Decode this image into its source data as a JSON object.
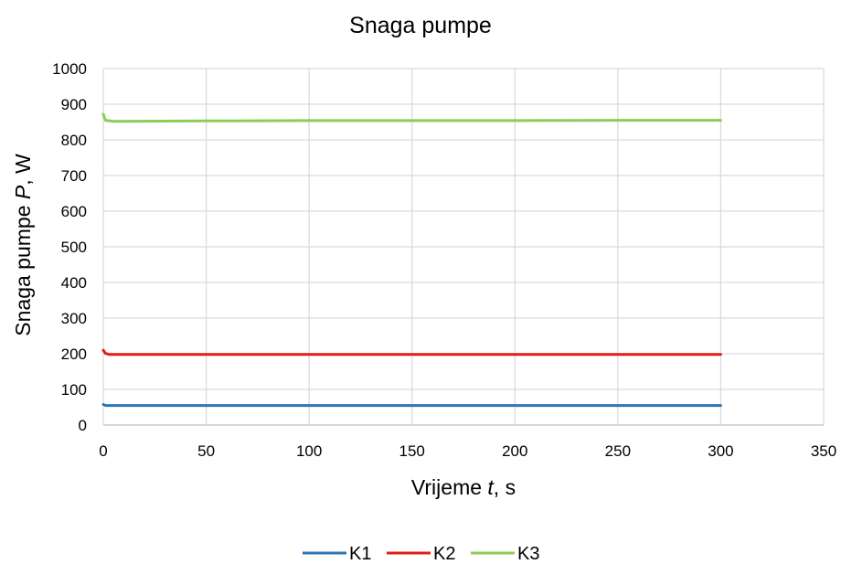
{
  "chart_data": {
    "type": "line",
    "title": "Snaga pumpe",
    "xlabel": {
      "pre": "Vrijeme ",
      "var": "t",
      "post": ", s"
    },
    "ylabel": {
      "pre": "Snaga pumpe ",
      "var": "P",
      "post": ", W"
    },
    "xlim": [
      0,
      350
    ],
    "ylim": [
      0,
      1000
    ],
    "xticks": [
      0,
      50,
      100,
      150,
      200,
      250,
      300,
      350
    ],
    "yticks": [
      0,
      100,
      200,
      300,
      400,
      500,
      600,
      700,
      800,
      900,
      1000
    ],
    "grid": true,
    "legend_position": "bottom",
    "series": [
      {
        "name": "K1",
        "color": "#2e75b6",
        "x": [
          0,
          1,
          50,
          100,
          150,
          200,
          250,
          300
        ],
        "y": [
          58,
          55,
          55,
          55,
          55,
          55,
          55,
          55
        ]
      },
      {
        "name": "K2",
        "color": "#e41b17",
        "x": [
          0,
          1,
          3,
          50,
          100,
          150,
          200,
          250,
          300
        ],
        "y": [
          210,
          201,
          198,
          198,
          198,
          198,
          198,
          198,
          198
        ]
      },
      {
        "name": "K3",
        "color": "#8fcb5a",
        "x": [
          0,
          1,
          5,
          50,
          100,
          150,
          200,
          250,
          300
        ],
        "y": [
          872,
          855,
          852,
          853,
          854,
          854,
          854,
          855,
          855
        ]
      }
    ]
  }
}
